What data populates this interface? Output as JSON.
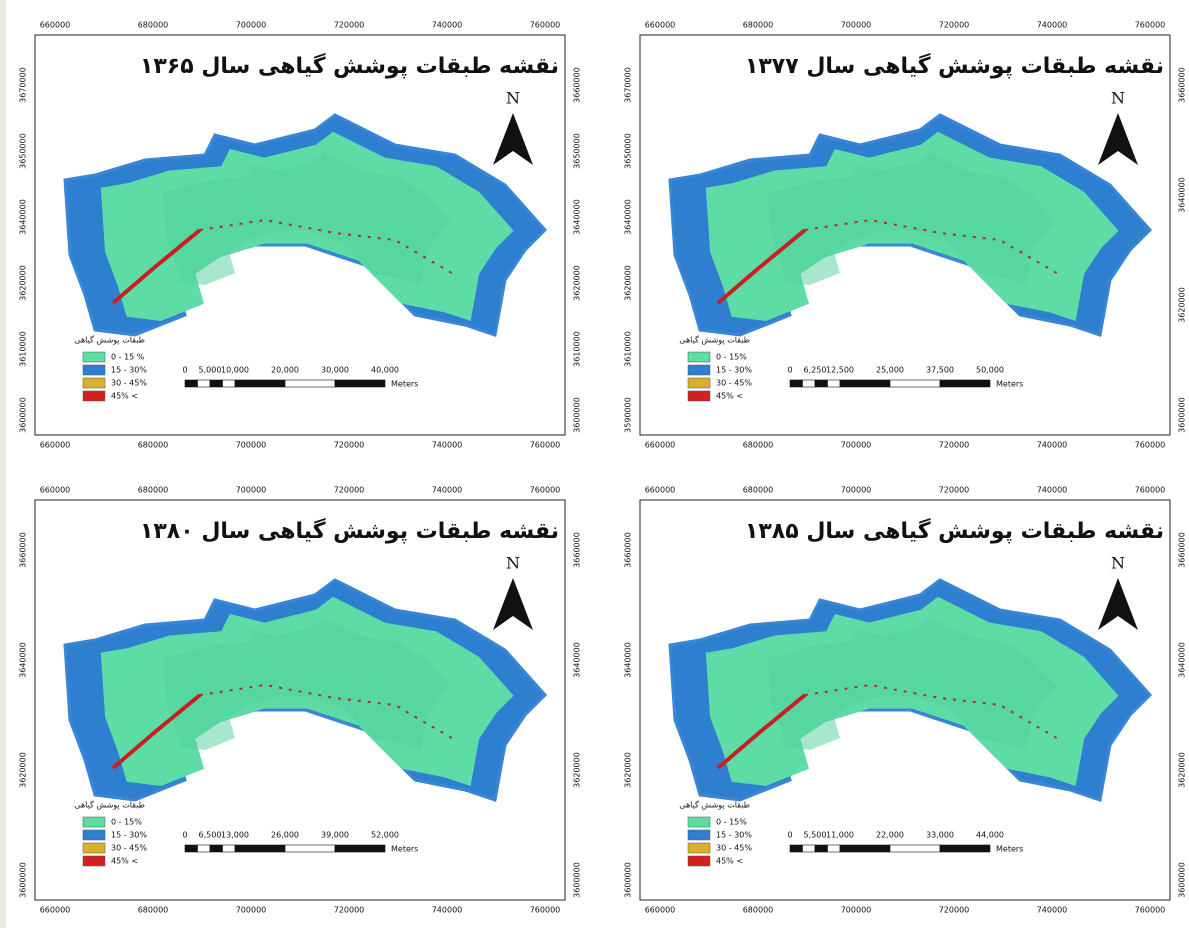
{
  "panels": [
    {
      "title": "نقشه طبقات پوشش گیاهی سال ۱۳۶۵",
      "north": "N",
      "x_ticks": [
        "660000",
        "680000",
        "700000",
        "720000",
        "740000",
        "760000"
      ],
      "y_ticks_left": [
        "3670000",
        "3650000",
        "3640000",
        "3620000",
        "3610000",
        "3600000"
      ],
      "y_ticks_right": [
        "3660000",
        "3650000",
        "3640000",
        "3620000",
        "3610000",
        "3600000"
      ],
      "legend_title": "طبقات پوشش گیاهی",
      "legend": [
        {
          "label": "0 - 15 %",
          "color": "#5ddca6"
        },
        {
          "label": "15 - 30%",
          "color": "#2f7fd1"
        },
        {
          "label": "30 - 45%",
          "color": "#d9b02a"
        },
        {
          "label": "45% <",
          "color": "#d42020"
        }
      ],
      "scale_labels": [
        "0",
        "5,000",
        "10,000",
        "20,000",
        "30,000",
        "40,000"
      ],
      "scale_unit": "Meters"
    },
    {
      "title": "نقشه طبقات پوشش گیاهی سال ۱۳۷۷",
      "north": "N",
      "x_ticks": [
        "660000",
        "680000",
        "700000",
        "720000",
        "740000",
        "760000"
      ],
      "y_ticks_left": [
        "3670000",
        "3650000",
        "3640000",
        "3620000",
        "3610000",
        "3590000"
      ],
      "y_ticks_right": [
        "3660000",
        "3640000",
        "3620000",
        "3600000"
      ],
      "legend_title": "طبقات پوشش گیاهی",
      "legend": [
        {
          "label": "0 - 15%",
          "color": "#5ddca6"
        },
        {
          "label": "15 - 30%",
          "color": "#2f7fd1"
        },
        {
          "label": "30 - 45%",
          "color": "#d9b02a"
        },
        {
          "label": "45% <",
          "color": "#d42020"
        }
      ],
      "scale_labels": [
        "0",
        "6,250",
        "12,500",
        "25,000",
        "37,500",
        "50,000"
      ],
      "scale_unit": "Meters"
    },
    {
      "title": "نقشه طبقات پوشش گیاهی سال ۱۳۸۰",
      "north": "N",
      "x_ticks": [
        "660000",
        "680000",
        "700000",
        "720000",
        "740000",
        "760000"
      ],
      "y_ticks_left": [
        "3660000",
        "3640000",
        "3620000",
        "3600000"
      ],
      "y_ticks_right": [
        "3660000",
        "3640000",
        "3620000",
        "3600000"
      ],
      "legend_title": "طبقات پوشش گیاهی",
      "legend": [
        {
          "label": "0 - 15%",
          "color": "#5ddca6"
        },
        {
          "label": "15 - 30%",
          "color": "#2f7fd1"
        },
        {
          "label": "30 - 45%",
          "color": "#d9b02a"
        },
        {
          "label": "45% <",
          "color": "#d42020"
        }
      ],
      "scale_labels": [
        "0",
        "6,500",
        "13,000",
        "26,000",
        "39,000",
        "52,000"
      ],
      "scale_unit": "Meters"
    },
    {
      "title": "نقشه طبقات پوشش گیاهی سال ۱۳۸۵",
      "north": "N",
      "x_ticks": [
        "660000",
        "680000",
        "700000",
        "720000",
        "740000",
        "760000"
      ],
      "y_ticks_left": [
        "3660000",
        "3640000",
        "3620000",
        "3600000"
      ],
      "y_ticks_right": [
        "3660000",
        "3640000",
        "3620000",
        "3600000"
      ],
      "legend_title": "طبقات پوشش گیاهی",
      "legend": [
        {
          "label": "0 - 15%",
          "color": "#5ddca6"
        },
        {
          "label": "15 - 30%",
          "color": "#2f7fd1"
        },
        {
          "label": "30 - 45%",
          "color": "#d9b02a"
        },
        {
          "label": "45% <",
          "color": "#d42020"
        }
      ],
      "scale_labels": [
        "0",
        "5,500",
        "11,000",
        "22,000",
        "33,000",
        "44,000"
      ],
      "scale_unit": "Meters"
    }
  ]
}
